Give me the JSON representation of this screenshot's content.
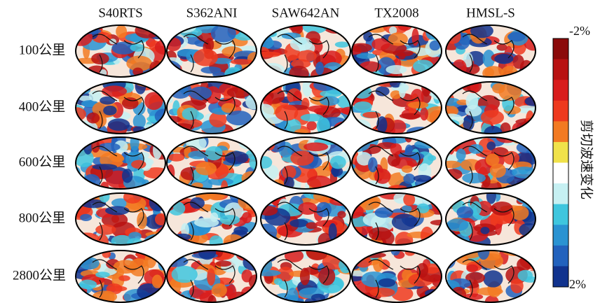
{
  "columns": [
    "S40RTS",
    "S362ANI",
    "SAW642AN",
    "TX2008",
    "HMSL-S"
  ],
  "rows": [
    "100公里",
    "400公里",
    "600公里",
    "800公里",
    "2800公里"
  ],
  "colorbar": {
    "title": "剪切波速变化",
    "top_label": "-2%",
    "bottom_label": "2%",
    "colors": [
      "#8b0a0a",
      "#b81212",
      "#d81c1c",
      "#ee3a1e",
      "#f27a22",
      "#f0e24a",
      "#ffffff",
      "#c6f0f2",
      "#3fc6de",
      "#2a93d2",
      "#2262bd",
      "#11338e"
    ]
  }
}
